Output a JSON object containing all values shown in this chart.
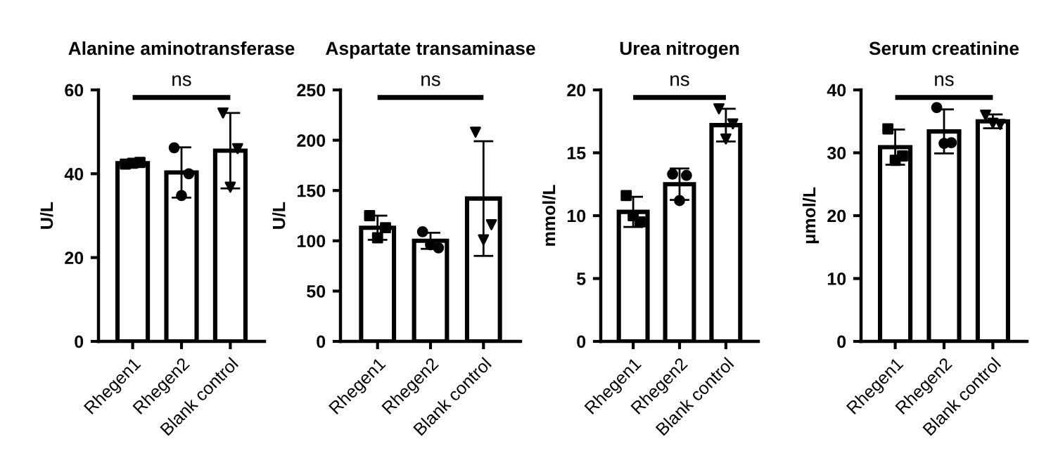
{
  "chart_data": [
    {
      "type": "bar",
      "title": "Alanine aminotransferase",
      "ylabel": "U/L",
      "categories": [
        "Rhegen1",
        "Rhegen2",
        "Blank control"
      ],
      "ylim": [
        0,
        60
      ],
      "yticks": [
        0,
        20,
        40,
        60
      ],
      "annotations": [
        "ns"
      ],
      "series": [
        {
          "color": "#ffffff",
          "values": [
            42.5,
            40.3,
            45.5
          ],
          "errors": [
            0.5,
            6,
            9
          ]
        },
        {
          "type": "scatter",
          "color": "#000000",
          "marker": [
            "square",
            "circle",
            "triangle"
          ],
          "x": [
            "Rhegen1",
            "Rhegen1",
            "Rhegen1",
            "Rhegen2",
            "Rhegen2",
            "Rhegen2",
            "Blank control",
            "Blank control",
            "Blank control"
          ],
          "values": [
            42.3,
            42.7,
            42.5,
            46.2,
            40,
            34.8,
            54.5,
            46,
            36.8
          ]
        }
      ]
    },
    {
      "type": "bar",
      "title": "Aspartate transaminase",
      "ylabel": "U/L",
      "categories": [
        "Rhegen1",
        "Rhegen2",
        "Blank control"
      ],
      "ylim": [
        0,
        250
      ],
      "yticks": [
        0,
        50,
        100,
        150,
        200,
        250
      ],
      "annotations": [
        "ns"
      ],
      "series": [
        {
          "color": "#ffffff",
          "values": [
            113,
            100,
            142
          ],
          "errors": [
            12,
            8,
            57
          ]
        },
        {
          "type": "scatter",
          "color": "#000000",
          "marker": [
            "square",
            "circle",
            "triangle"
          ],
          "x": [
            "Rhegen1",
            "Rhegen1",
            "Rhegen1",
            "Rhegen2",
            "Rhegen2",
            "Rhegen2",
            "Blank control",
            "Blank control",
            "Blank control"
          ],
          "values": [
            125,
            113,
            103,
            109,
            93,
            96,
            208,
            116,
            101
          ]
        }
      ]
    },
    {
      "type": "bar",
      "title": "Urea nitrogen",
      "ylabel": "mmol/L",
      "categories": [
        "Rhegen1",
        "Rhegen2",
        "Blank control"
      ],
      "ylim": [
        0,
        20
      ],
      "yticks": [
        0,
        5,
        10,
        15,
        20
      ],
      "annotations": [
        "ns"
      ],
      "series": [
        {
          "color": "#ffffff",
          "values": [
            10.3,
            12.5,
            17.2
          ],
          "errors": [
            1.2,
            1.25,
            1.3
          ]
        },
        {
          "type": "scatter",
          "color": "#000000",
          "marker": [
            "square",
            "circle",
            "triangle"
          ],
          "x": [
            "Rhegen1",
            "Rhegen1",
            "Rhegen1",
            "Rhegen2",
            "Rhegen2",
            "Rhegen2",
            "Blank control",
            "Blank control",
            "Blank control"
          ],
          "values": [
            11.6,
            9.5,
            10.0,
            13.3,
            13.2,
            11.2,
            18.5,
            17.3,
            16.1
          ]
        }
      ]
    },
    {
      "type": "bar",
      "title": "Serum creatinine",
      "ylabel": "μmol/L",
      "categories": [
        "Rhegen1",
        "Rhegen2",
        "Blank control"
      ],
      "ylim": [
        0,
        40
      ],
      "yticks": [
        0,
        10,
        20,
        30,
        40
      ],
      "annotations": [
        "ns"
      ],
      "series": [
        {
          "color": "#ffffff",
          "values": [
            30.9,
            33.4,
            35.0
          ],
          "errors": [
            2.8,
            3.5,
            1.1
          ]
        },
        {
          "type": "scatter",
          "color": "#000000",
          "marker": [
            "square",
            "circle",
            "triangle"
          ],
          "x": [
            "Rhegen1",
            "Rhegen1",
            "Rhegen1",
            "Rhegen2",
            "Rhegen2",
            "Rhegen2",
            "Blank control",
            "Blank control",
            "Blank control"
          ],
          "values": [
            33.8,
            29.5,
            28.8,
            37.2,
            31.6,
            31.5,
            36,
            34.5,
            34.7
          ]
        }
      ]
    }
  ]
}
